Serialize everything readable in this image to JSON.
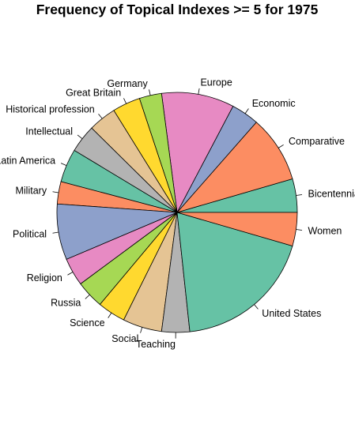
{
  "chart_data": {
    "type": "pie",
    "title": "Frequency of Topical Indexes >= 5 for 1975",
    "start_angle_deg": 0,
    "direction": "counterclockwise",
    "labels": [
      "Bicentennial",
      "Comparative",
      "Economic",
      "Europe",
      "Germany",
      "Great Britain",
      "Historical profession",
      "Intellectual",
      "Latin America",
      "Military",
      "Political",
      "Religion",
      "Russia",
      "Science",
      "Social",
      "Teaching",
      "United States",
      "Women"
    ],
    "values": [
      6,
      12,
      5,
      13,
      4,
      5,
      5,
      5,
      6,
      4,
      10,
      5,
      5,
      5,
      7,
      5,
      25,
      6
    ],
    "colors": [
      "#66c2a5",
      "#fc8d62",
      "#8da0cb",
      "#e78ac3",
      "#a6d854",
      "#ffd92f",
      "#e5c494",
      "#b3b3b3",
      "#66c2a5",
      "#fc8d62",
      "#8da0cb",
      "#e78ac3",
      "#a6d854",
      "#ffd92f",
      "#e5c494",
      "#b3b3b3",
      "#66c2a5",
      "#fc8d62"
    ]
  }
}
